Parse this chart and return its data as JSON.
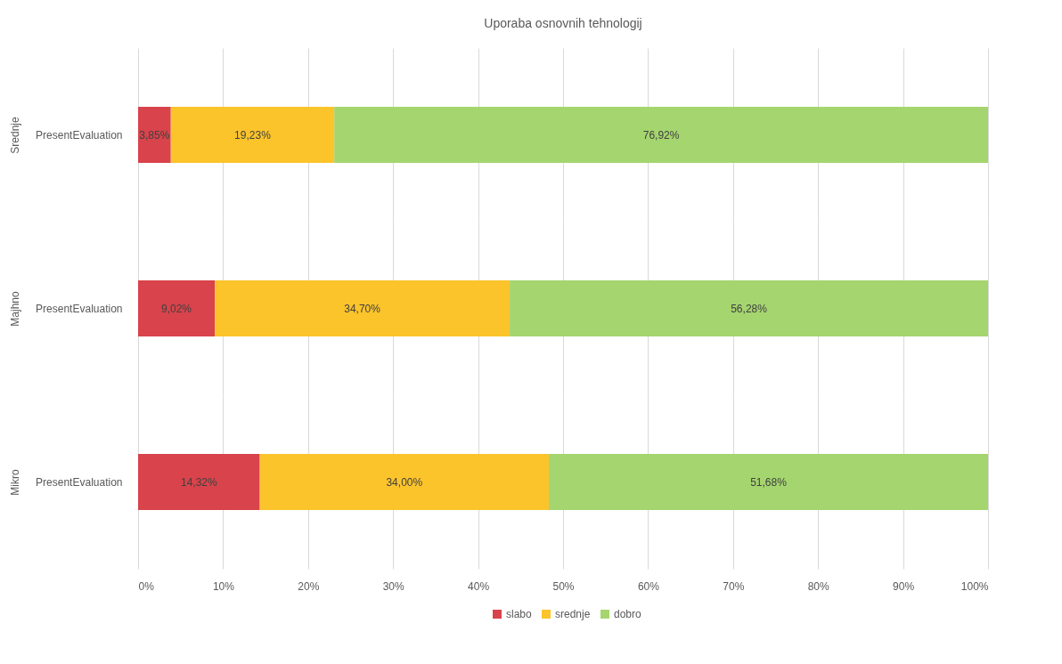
{
  "chart_data": [
    {
      "type": "bar",
      "orientation": "horizontal",
      "stacked": true,
      "title": "Uporaba osnovnih tehnologij",
      "ylabel": "Srednje",
      "categories": [
        "PresentEvaluation"
      ],
      "xlim": [
        0,
        100
      ],
      "xticks": [
        0,
        10,
        20,
        30,
        40,
        50,
        60,
        70,
        80,
        90,
        100
      ],
      "grid": "x",
      "tick_labels": "y",
      "series": [
        {
          "color": "#d9434b",
          "values": [
            3.85
          ],
          "value_labels": [
            "3,85%"
          ]
        },
        {
          "color": "#fcc42b",
          "values": [
            19.23
          ],
          "value_labels": [
            "19,23%"
          ]
        },
        {
          "color": "#a5d56e",
          "values": [
            76.92
          ],
          "value_labels": [
            "76,92%"
          ]
        }
      ]
    },
    {
      "type": "bar",
      "orientation": "horizontal",
      "stacked": true,
      "ylabel": "Majhno",
      "categories": [
        "PresentEvaluation"
      ],
      "xlim": [
        0,
        100
      ],
      "xticks": [
        0,
        10,
        20,
        30,
        40,
        50,
        60,
        70,
        80,
        90,
        100
      ],
      "grid": "x",
      "tick_labels": "y",
      "series": [
        {
          "color": "#d9434b",
          "values": [
            9.02
          ],
          "value_labels": [
            "9,02%"
          ]
        },
        {
          "color": "#fcc42b",
          "values": [
            34.7
          ],
          "value_labels": [
            "34,70%"
          ]
        },
        {
          "color": "#a5d56e",
          "values": [
            56.28
          ],
          "value_labels": [
            "56,28%"
          ]
        }
      ]
    },
    {
      "type": "bar",
      "orientation": "horizontal",
      "stacked": true,
      "ylabel": "Mikro",
      "categories": [
        "PresentEvaluation"
      ],
      "xlim": [
        0,
        100
      ],
      "xticks": [
        {
          "value": 0,
          "label": "0%"
        },
        {
          "value": 10,
          "label": "10%"
        },
        {
          "value": 20,
          "label": "20%"
        },
        {
          "value": 30,
          "label": "30%"
        },
        {
          "value": 40,
          "label": "40%"
        },
        {
          "value": 50,
          "label": "50%"
        },
        {
          "value": 60,
          "label": "60%"
        },
        {
          "value": 70,
          "label": "70%"
        },
        {
          "value": 80,
          "label": "80%"
        },
        {
          "value": 90,
          "label": "90%"
        },
        {
          "value": 100,
          "label": "100%"
        }
      ],
      "grid": "x",
      "legend": "bottom",
      "series": [
        {
          "name": "slabo",
          "color": "#d9434b",
          "values": [
            14.32
          ],
          "value_labels": [
            "14,32%"
          ]
        },
        {
          "name": "srednje",
          "color": "#fcc42b",
          "values": [
            34.0
          ],
          "value_labels": [
            "34,00%"
          ]
        },
        {
          "name": "dobro",
          "color": "#a5d56e",
          "values": [
            51.68
          ],
          "value_labels": [
            "51,68%"
          ]
        }
      ]
    }
  ]
}
